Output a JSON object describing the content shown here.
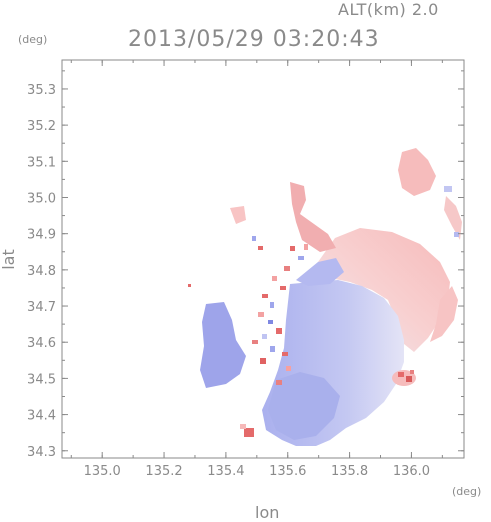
{
  "header": {
    "altitude": "ALT(km) 2.0",
    "datetime": "2013/05/29 03:20:43"
  },
  "axes": {
    "x_unit": "(deg)",
    "y_unit": "(deg)",
    "xlabel": "lon",
    "ylabel": "lat"
  },
  "chart_data": {
    "type": "heatmap",
    "xlim": [
      134.87,
      136.17
    ],
    "ylim": [
      34.28,
      35.38
    ],
    "x_ticks": [
      "135.0",
      "135.2",
      "135.4",
      "135.6",
      "135.8",
      "136.0"
    ],
    "x_tick_values": [
      135.0,
      135.2,
      135.4,
      135.6,
      135.8,
      136.0
    ],
    "y_ticks": [
      "34.3",
      "34.4",
      "34.5",
      "34.6",
      "34.7",
      "34.8",
      "34.9",
      "35.0",
      "35.1",
      "35.2",
      "35.3"
    ],
    "y_tick_values": [
      34.3,
      34.4,
      34.5,
      34.6,
      34.7,
      34.8,
      34.9,
      35.0,
      35.1,
      35.2,
      35.3
    ],
    "colors": {
      "approaching": "#9fa6ec",
      "approaching_light": "#c9cdf4",
      "receding": "#f6b9b9",
      "receding_strong": "#e46a6a",
      "frame": "#8a8a8a"
    }
  }
}
